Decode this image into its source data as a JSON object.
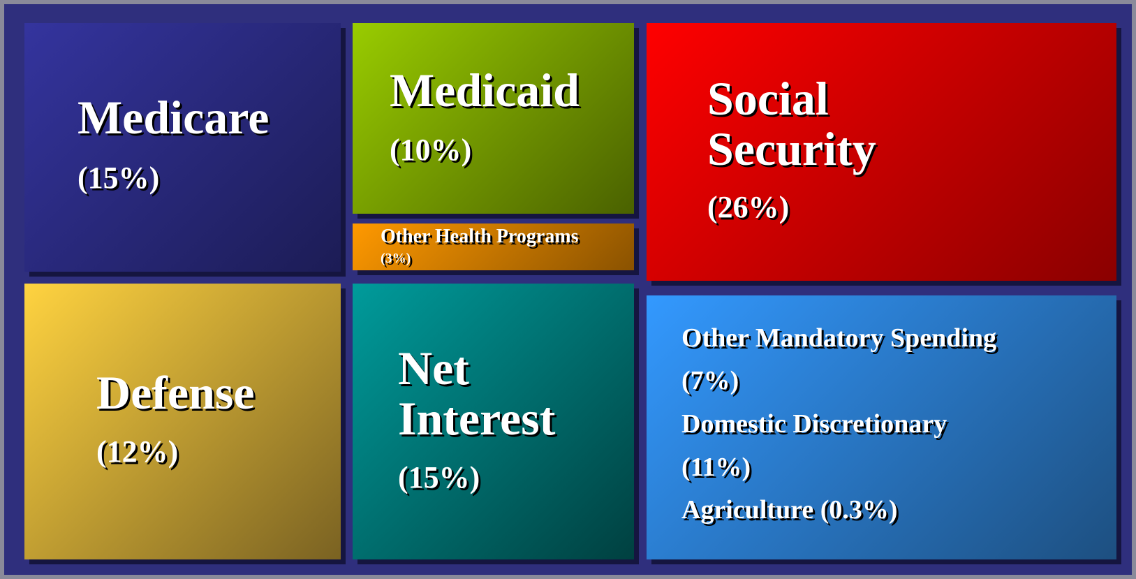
{
  "boxes": [
    {
      "label": "Medicare",
      "share": "(15%)"
    },
    {
      "label": "Medicaid",
      "share": "(10%)"
    },
    {
      "label": "Other Health Programs",
      "share": "(3%)"
    },
    {
      "label": "Social Security",
      "share": "(26%)"
    },
    {
      "label": "Defense",
      "share": "(12%)"
    },
    {
      "label": "Net Interest",
      "share": "(15%)"
    },
    {
      "lines": [
        "Other Mandatory Spending",
        "(7%)",
        "Domestic Discretionary",
        "(11%)",
        "Agriculture (0.3%)"
      ]
    }
  ]
}
